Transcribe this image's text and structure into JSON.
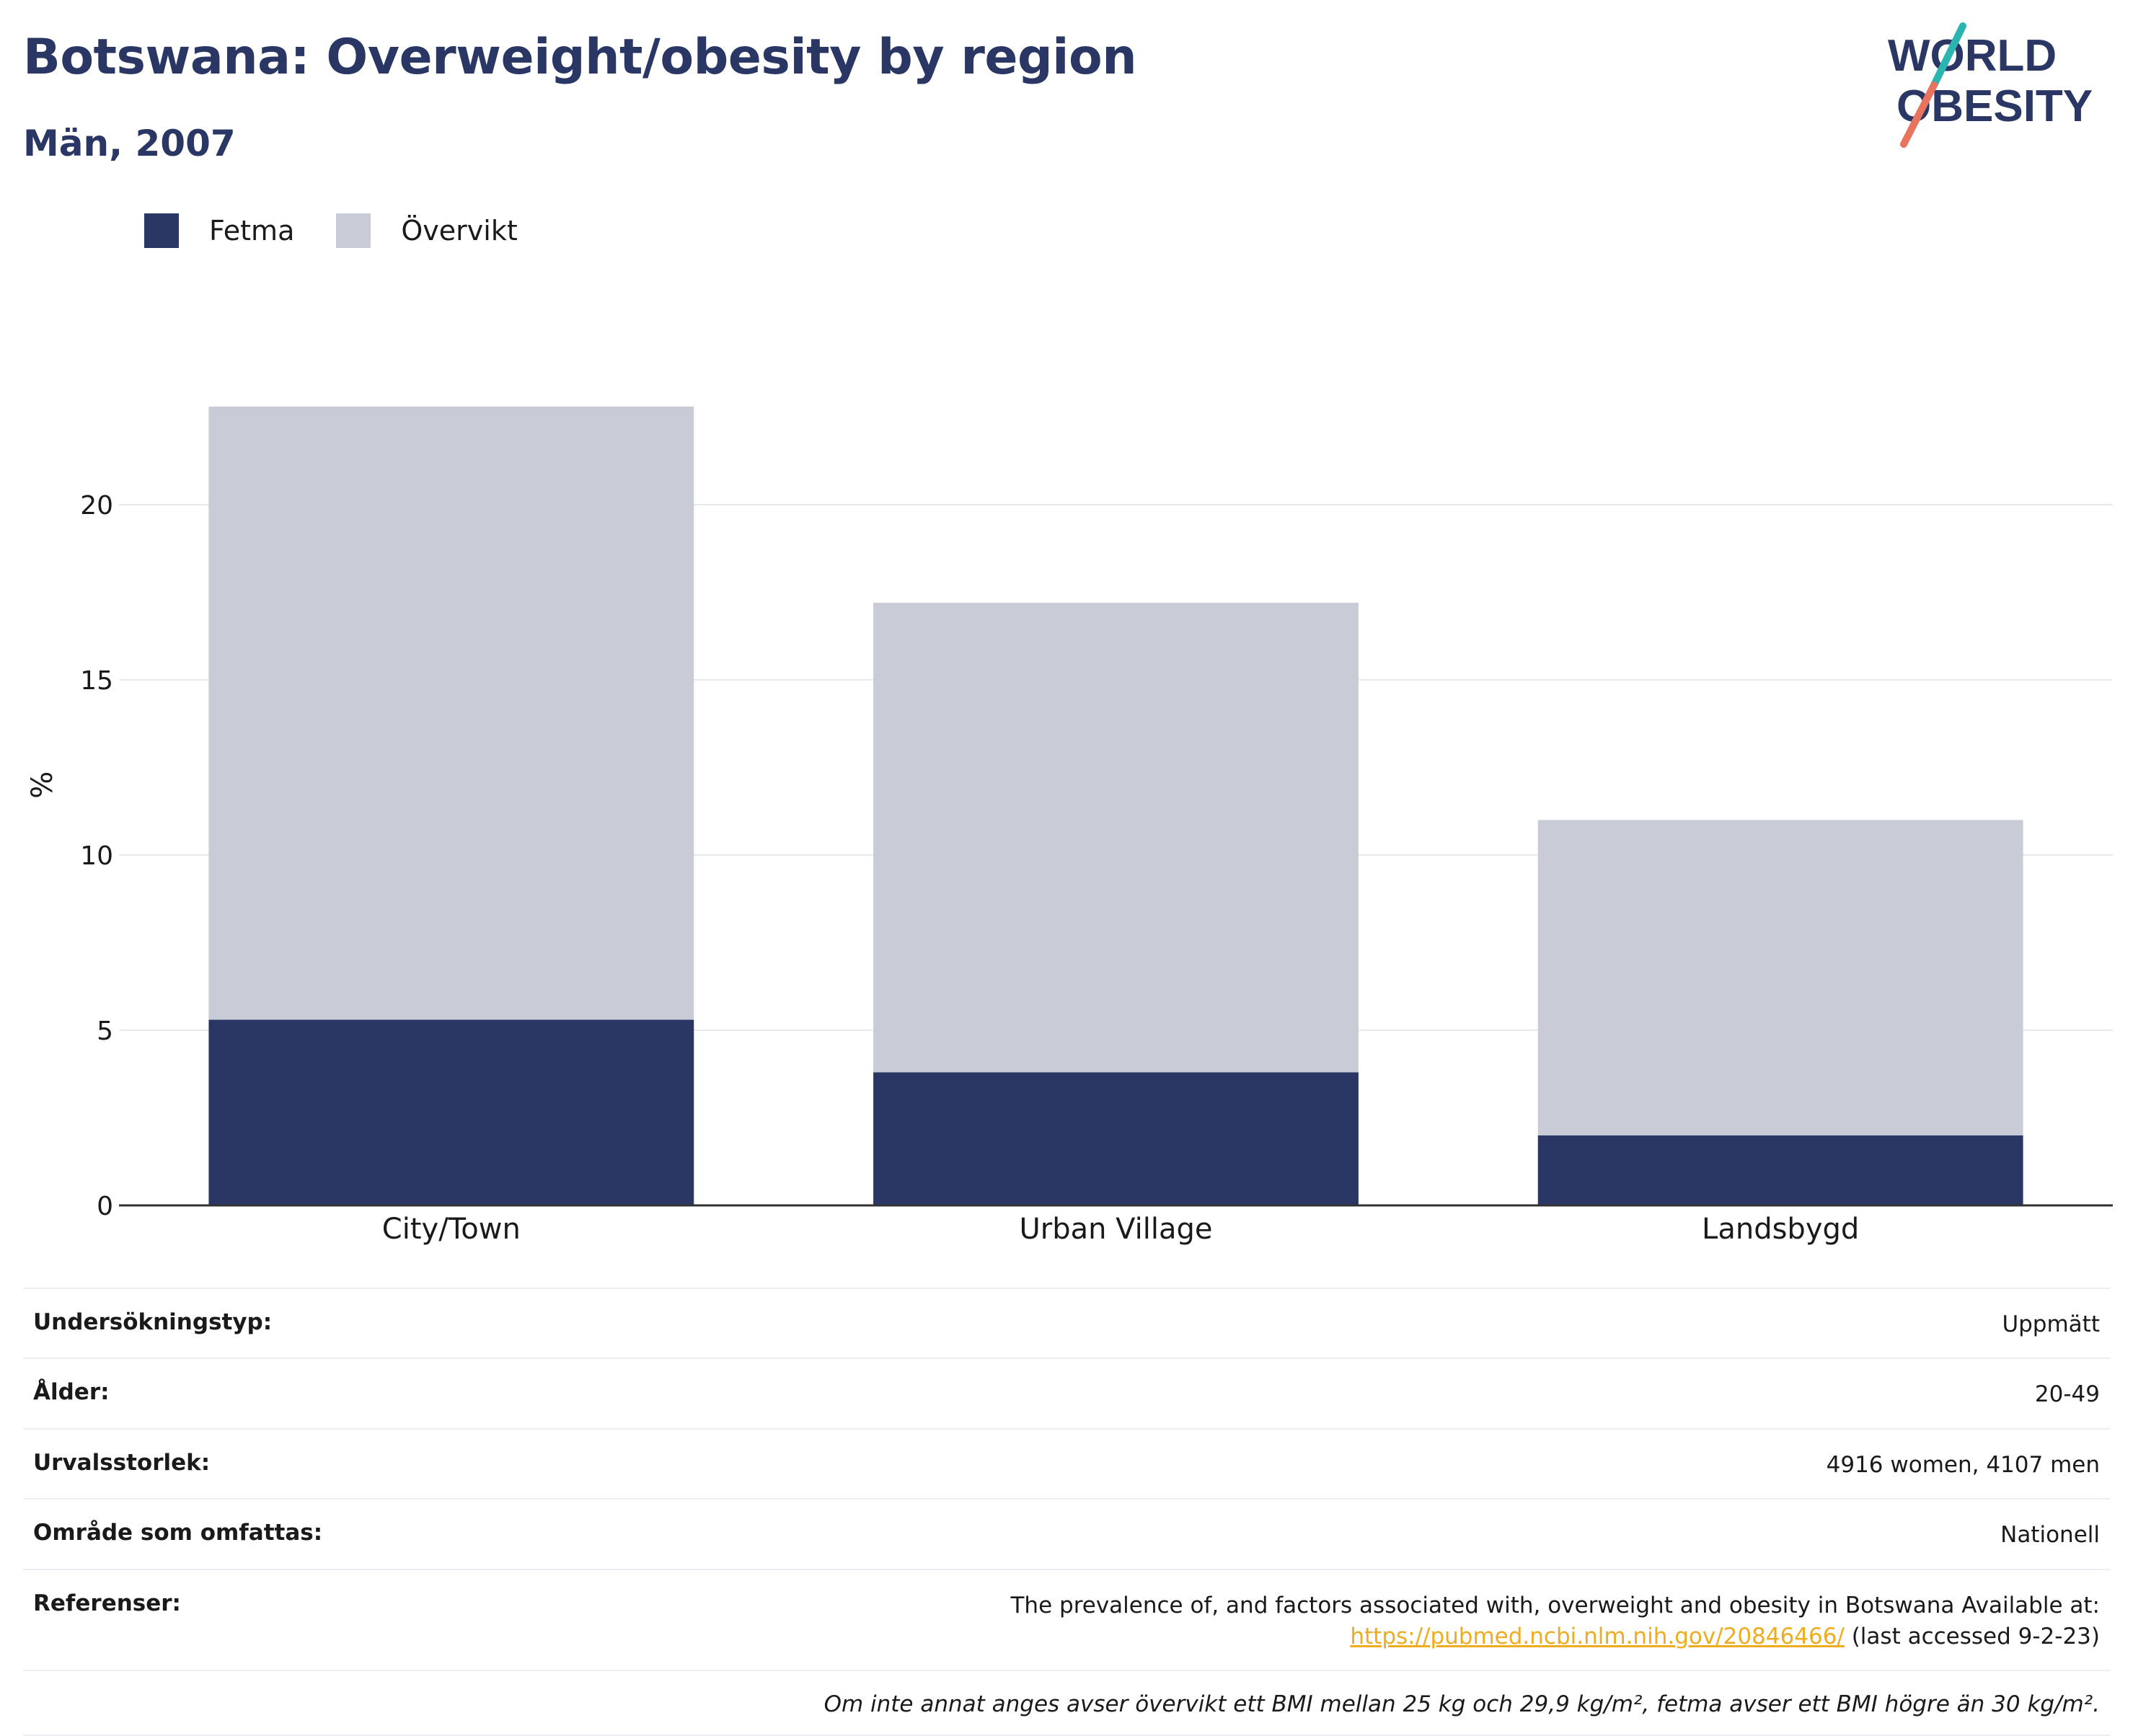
{
  "header": {
    "title": "Botswana: Overweight/obesity by region",
    "subtitle": "Män, 2007"
  },
  "logo": {
    "line1": "WORLD",
    "line2": "OBESITY"
  },
  "colors": {
    "fetma": "#2a3664",
    "overvikt": "#c9ccd7",
    "title": "#2a3664",
    "link": "#f0ac20"
  },
  "legend": {
    "items": [
      "Fetma",
      "Övervikt"
    ]
  },
  "chart_data": {
    "type": "bar",
    "stacked": true,
    "categories": [
      "City/Town",
      "Urban Village",
      "Landsbygd"
    ],
    "series": [
      {
        "name": "Fetma",
        "values": [
          5.3,
          3.8,
          2.0
        ]
      },
      {
        "name": "Övervikt",
        "values": [
          17.5,
          13.4,
          9.0
        ]
      }
    ],
    "ylabel": "%",
    "ylim": [
      0,
      24
    ],
    "yticks": [
      0,
      5,
      10,
      15,
      20
    ],
    "grid": true,
    "legend_position": "top-left"
  },
  "meta": {
    "rows": [
      {
        "label": "Undersökningstyp:",
        "value": "Uppmätt"
      },
      {
        "label": "Ålder:",
        "value": "20-49"
      },
      {
        "label": "Urvalsstorlek:",
        "value": "4916 women, 4107 men"
      },
      {
        "label": "Område som omfattas:",
        "value": "Nationell"
      }
    ],
    "references": {
      "label": "Referenser:",
      "text": "The prevalence of, and factors associated with, overweight and obesity in Botswana Available at:",
      "link": "https://pubmed.ncbi.nlm.nih.gov/20846466/",
      "suffix": " (last accessed 9-2-23)"
    },
    "note": "Om inte annat anges avser övervikt ett BMI mellan 25 kg och 29,9 kg/m², fetma avser ett BMI högre än 30 kg/m²."
  }
}
